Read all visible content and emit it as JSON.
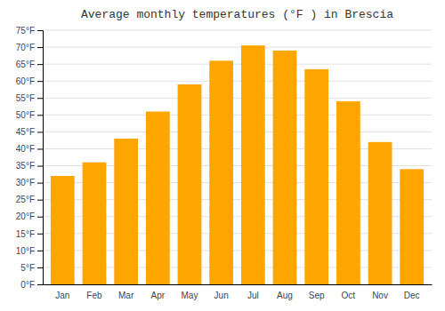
{
  "chart_data": {
    "type": "bar",
    "title": "Average monthly temperatures (°F ) in Brescia",
    "categories": [
      "Jan",
      "Feb",
      "Mar",
      "Apr",
      "May",
      "Jun",
      "Jul",
      "Aug",
      "Sep",
      "Oct",
      "Nov",
      "Dec"
    ],
    "values": [
      32,
      36,
      43,
      51,
      59,
      66,
      70.5,
      69,
      63.5,
      54,
      42,
      34
    ],
    "color": "#FFA500",
    "ylim": [
      0,
      75
    ],
    "yticks": [
      {
        "value": 0,
        "label": "0°F"
      },
      {
        "value": 5,
        "label": "5°F"
      },
      {
        "value": 10,
        "label": "10°F"
      },
      {
        "value": 15,
        "label": "15°F"
      },
      {
        "value": 20,
        "label": "20°F"
      },
      {
        "value": 25,
        "label": "25°F"
      },
      {
        "value": 30,
        "label": "30°F"
      },
      {
        "value": 35,
        "label": "35°F"
      },
      {
        "value": 40,
        "label": "40°F"
      },
      {
        "value": 45,
        "label": "45°F"
      },
      {
        "value": 50,
        "label": "50°F"
      },
      {
        "value": 55,
        "label": "55°F"
      },
      {
        "value": 60,
        "label": "60°F"
      },
      {
        "value": 65,
        "label": "65°F"
      },
      {
        "value": 70,
        "label": "70°F"
      },
      {
        "value": 75,
        "label": "75°F"
      }
    ],
    "grid": true
  }
}
